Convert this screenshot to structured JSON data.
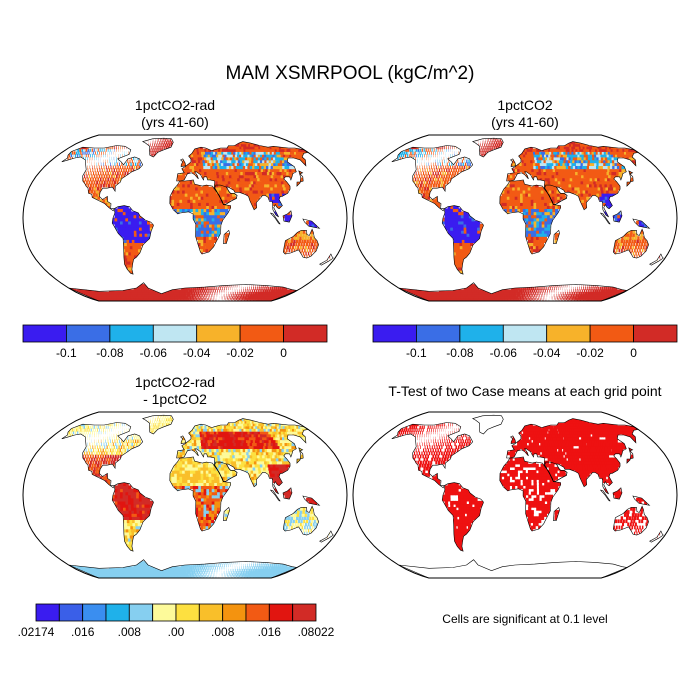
{
  "figure_title": "MAM XSMRPOOL (kgC/m^2)",
  "panels": [
    {
      "title_line1": "1pctCO2-rad",
      "title_line2": "(yrs 41-60)"
    },
    {
      "title_line1": "1pctCO2",
      "title_line2": "(yrs 41-60)"
    },
    {
      "title_line1": "1pctCO2-rad",
      "title_line2": "- 1pctCO2"
    },
    {
      "title_line1": "T-Test of two Case means at each grid point"
    }
  ],
  "colorbar_top": {
    "colors": [
      "#3a1cf0",
      "#3a6ee6",
      "#1fb1ea",
      "#bfe6f2",
      "#f7b22a",
      "#f25a14",
      "#d22b26"
    ],
    "tick_labels": [
      "-0.1",
      "-0.08",
      "-0.06",
      "-0.04",
      "-0.02",
      "0"
    ]
  },
  "colorbar_diff": {
    "colors": [
      "#3a1cf0",
      "#3a5fe8",
      "#3a8ef0",
      "#1fb1ea",
      "#86cff0",
      "#fdfa9a",
      "#fde040",
      "#f9bf2a",
      "#f4930f",
      "#f25a14",
      "#e11510",
      "#d22b26"
    ],
    "tick_labels": [
      ".02174",
      ".016",
      ".008",
      ".00",
      ".008",
      ".016",
      ".08022"
    ]
  },
  "significance_note": "Cells are significant at 0.1 level"
}
